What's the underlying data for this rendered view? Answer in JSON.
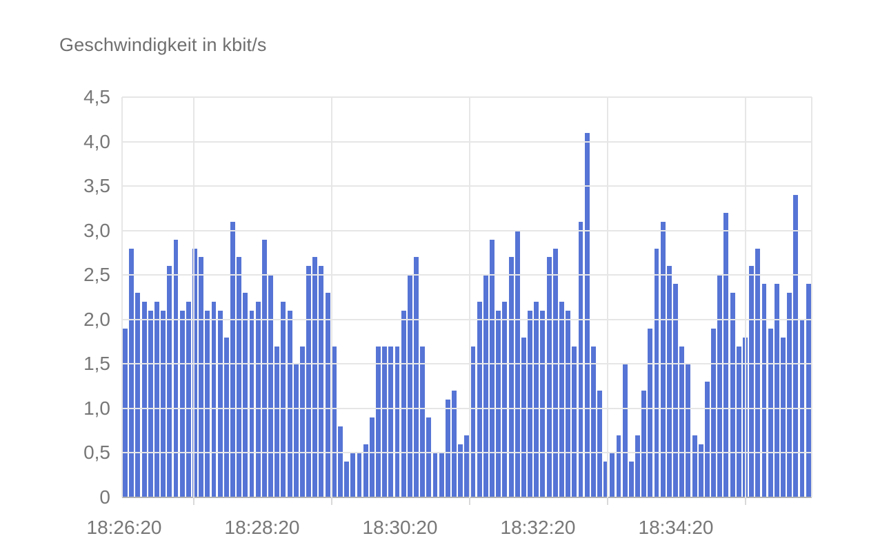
{
  "title": "Geschwindigkeit in kbit/s",
  "chart_data": {
    "type": "bar",
    "title": "Geschwindigkeit in kbit/s",
    "xlabel": "",
    "ylabel": "kbit/s",
    "ylim": [
      0,
      4.5
    ],
    "grid": true,
    "legend_position": "none",
    "y_ticks": [
      {
        "label": "4,5",
        "value": 4.5
      },
      {
        "label": "4,0",
        "value": 4.0
      },
      {
        "label": "3,5",
        "value": 3.5
      },
      {
        "label": "3,0",
        "value": 3.0
      },
      {
        "label": "2,5",
        "value": 2.5
      },
      {
        "label": "2,0",
        "value": 2.0
      },
      {
        "label": "1,5",
        "value": 1.5
      },
      {
        "label": "1,0",
        "value": 1.0
      },
      {
        "label": "0,5",
        "value": 0.5
      },
      {
        "label": "0",
        "value": 0
      }
    ],
    "x_ticks": [
      "18:26:20",
      "18:28:20",
      "18:30:20",
      "18:32:20",
      "18:34:20"
    ],
    "values": [
      1.9,
      2.8,
      2.3,
      2.2,
      2.1,
      2.2,
      2.1,
      2.6,
      2.9,
      2.1,
      2.2,
      2.8,
      2.7,
      2.1,
      2.2,
      2.1,
      1.8,
      3.1,
      2.7,
      2.3,
      2.1,
      2.2,
      2.9,
      2.5,
      1.7,
      2.2,
      2.1,
      1.5,
      1.7,
      2.6,
      2.7,
      2.6,
      2.3,
      1.7,
      0.8,
      0.4,
      0.5,
      0.5,
      0.6,
      0.9,
      1.7,
      1.7,
      1.7,
      1.7,
      2.1,
      2.5,
      2.7,
      1.7,
      0.9,
      0.5,
      0.5,
      1.1,
      1.2,
      0.6,
      0.7,
      1.7,
      2.2,
      2.5,
      2.9,
      2.1,
      2.2,
      2.7,
      3.0,
      1.8,
      2.1,
      2.2,
      2.1,
      2.7,
      2.8,
      2.2,
      2.1,
      1.7,
      3.1,
      4.1,
      1.7,
      1.2,
      0.4,
      0.5,
      0.7,
      1.5,
      0.4,
      0.7,
      1.2,
      1.9,
      2.8,
      3.1,
      2.6,
      2.4,
      1.7,
      1.5,
      0.7,
      0.6,
      1.3,
      1.9,
      2.5,
      3.2,
      2.3,
      1.7,
      1.8,
      2.6,
      2.8,
      2.4,
      1.9,
      2.4,
      1.8,
      2.3,
      3.4,
      2.0,
      2.4
    ],
    "colors": {
      "bar": "#5674d5",
      "gridline": "#e6e6e6",
      "baseline": "#b3b3b3",
      "tick": "#d9d9d9",
      "text": "#777777",
      "title_text": "#6f6f6f",
      "background": "#ffffff"
    }
  }
}
